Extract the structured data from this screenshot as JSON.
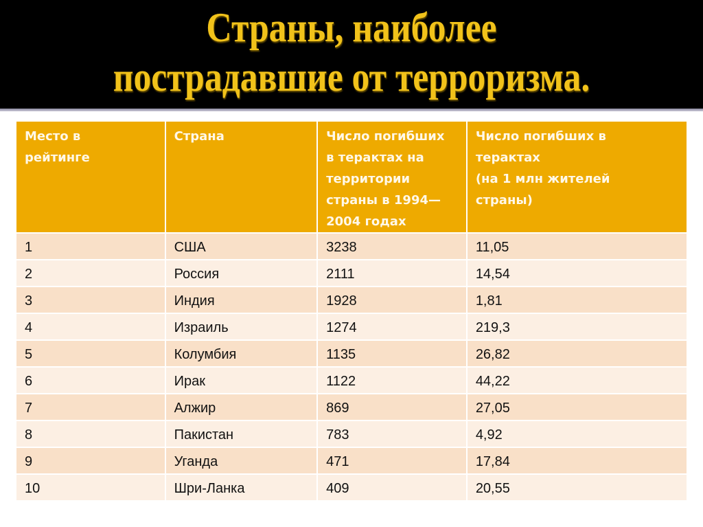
{
  "slide": {
    "title_line1": "Страны, наиболее",
    "title_line2": "пострадавшие от терроризма.",
    "colors": {
      "title_band": "#000000",
      "title_text": "#f1c21a",
      "header_fill": "#eeaa00",
      "row_odd": "#f9e0c8",
      "row_even": "#fcefe3"
    }
  },
  "table": {
    "headers": [
      "Место в\n рейтинге",
      "Страна",
      "Число погибших\nв терактах на\n территории\nстраны в 1994—\n2004 годах",
      "Число погибших в\nтерактах\n (на 1 млн жителей\nстраны)"
    ],
    "rows": [
      {
        "rank": "1",
        "country": "США",
        "deaths": "3238",
        "per_million": "11,05"
      },
      {
        "rank": "2",
        "country": "Россия",
        "deaths": "2111",
        "per_million": "14,54"
      },
      {
        "rank": "3",
        "country": "Индия",
        "deaths": "1928",
        "per_million": "1,81"
      },
      {
        "rank": "4",
        "country": "Израиль",
        "deaths": "1274",
        "per_million": "219,3"
      },
      {
        "rank": "5",
        "country": "Колумбия",
        "deaths": "1135",
        "per_million": "26,82"
      },
      {
        "rank": "6",
        "country": "Ирак",
        "deaths": "1122",
        "per_million": "44,22"
      },
      {
        "rank": "7",
        "country": "Алжир",
        "deaths": "869",
        "per_million": "27,05"
      },
      {
        "rank": "8",
        "country": "Пакистан",
        "deaths": "783",
        "per_million": "4,92"
      },
      {
        "rank": "9",
        "country": "Уганда",
        "deaths": "471",
        "per_million": "17,84"
      },
      {
        "rank": "10",
        "country": "Шри-Ланка",
        "deaths": "409",
        "per_million": "20,55"
      }
    ]
  }
}
